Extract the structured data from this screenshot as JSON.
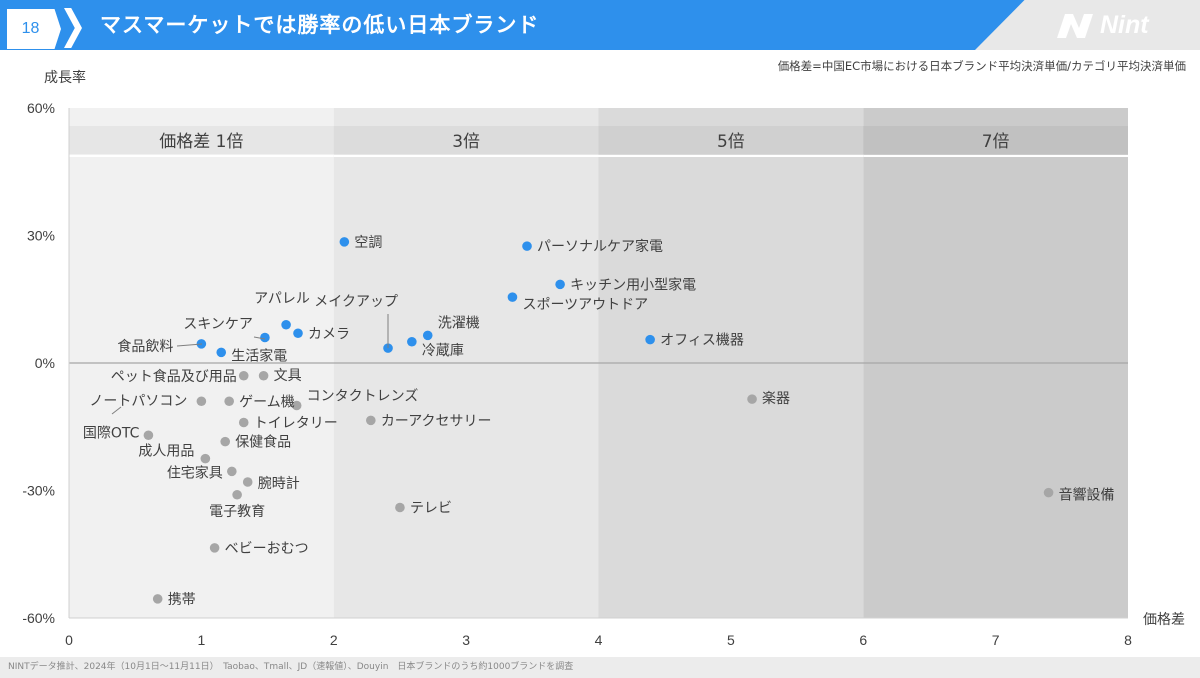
{
  "header": {
    "page_number": "18",
    "title": "マスマーケットでは勝率の低い日本ブランド",
    "logo": "Nint"
  },
  "colors": {
    "header_blue": "#2e90ec",
    "point_blue": "#2e90ec",
    "point_gray": "#a6a6a6"
  },
  "chart_data": {
    "type": "scatter",
    "note": "価格差=中国EC市場における日本ブランド平均決済単価/カテゴリ平均決済単価",
    "xlabel": "価格差",
    "ylabel": "成長率",
    "xlim": [
      0,
      8
    ],
    "ylim": [
      -60,
      60
    ],
    "x_ticks": [
      "0",
      "1",
      "2",
      "3",
      "4",
      "5",
      "6",
      "7",
      "8"
    ],
    "y_ticks": [
      "60%",
      "30%",
      "0%",
      "-30%",
      "-60%"
    ],
    "bands": [
      {
        "label": "価格差 1倍",
        "x_range": [
          0,
          2
        ]
      },
      {
        "label": "3倍",
        "x_range": [
          2,
          4
        ]
      },
      {
        "label": "5倍",
        "x_range": [
          4,
          6
        ]
      },
      {
        "label": "7倍",
        "x_range": [
          6,
          8
        ]
      }
    ],
    "points": [
      {
        "label": "空調",
        "x": 2.08,
        "y": 28.5,
        "group": "blue"
      },
      {
        "label": "パーソナルケア家電",
        "x": 3.46,
        "y": 27.5,
        "group": "blue"
      },
      {
        "label": "キッチン用小型家電",
        "x": 3.71,
        "y": 18.5,
        "group": "blue"
      },
      {
        "label": "スポーツアウトドア",
        "x": 3.35,
        "y": 15.5,
        "group": "blue"
      },
      {
        "label": "アパレル",
        "x": 1.64,
        "y": 9,
        "group": "blue"
      },
      {
        "label": "カメラ",
        "x": 1.73,
        "y": 7,
        "group": "blue"
      },
      {
        "label": "スキンケア",
        "x": 1.48,
        "y": 6,
        "group": "blue"
      },
      {
        "label": "食品飲料",
        "x": 1.0,
        "y": 4.5,
        "group": "blue"
      },
      {
        "label": "生活家電",
        "x": 1.15,
        "y": 2.5,
        "group": "blue"
      },
      {
        "label": "メイクアップ",
        "x": 2.41,
        "y": 3.5,
        "group": "blue"
      },
      {
        "label": "洗濯機",
        "x": 2.71,
        "y": 6.5,
        "group": "blue"
      },
      {
        "label": "冷蔵庫",
        "x": 2.59,
        "y": 5,
        "group": "blue"
      },
      {
        "label": "オフィス機器",
        "x": 4.39,
        "y": 5.5,
        "group": "blue"
      },
      {
        "label": "ペット食品及び用品",
        "x": 1.32,
        "y": -3,
        "group": "gray"
      },
      {
        "label": "文具",
        "x": 1.47,
        "y": -3,
        "group": "gray"
      },
      {
        "label": "ノートパソコン",
        "x": 1.0,
        "y": -9,
        "group": "gray"
      },
      {
        "label": "ゲーム機",
        "x": 1.21,
        "y": -9,
        "group": "gray"
      },
      {
        "label": "コンタクトレンズ",
        "x": 1.72,
        "y": -10,
        "group": "gray"
      },
      {
        "label": "トイレタリー",
        "x": 1.32,
        "y": -14,
        "group": "gray"
      },
      {
        "label": "カーアクセサリー",
        "x": 2.28,
        "y": -13.5,
        "group": "gray"
      },
      {
        "label": "楽器",
        "x": 5.16,
        "y": -8.5,
        "group": "gray"
      },
      {
        "label": "国際OTC",
        "x": 0.6,
        "y": -17,
        "group": "gray"
      },
      {
        "label": "保健食品",
        "x": 1.18,
        "y": -18.5,
        "group": "gray"
      },
      {
        "label": "成人用品",
        "x": 1.03,
        "y": -22.5,
        "group": "gray"
      },
      {
        "label": "住宅家具",
        "x": 1.23,
        "y": -25.5,
        "group": "gray"
      },
      {
        "label": "腕時計",
        "x": 1.35,
        "y": -28,
        "group": "gray"
      },
      {
        "label": "電子教育",
        "x": 1.27,
        "y": -31,
        "group": "gray"
      },
      {
        "label": "テレビ",
        "x": 2.5,
        "y": -34,
        "group": "gray"
      },
      {
        "label": "音響設備",
        "x": 7.4,
        "y": -30.5,
        "group": "gray"
      },
      {
        "label": "ベビーおむつ",
        "x": 1.1,
        "y": -43.5,
        "group": "gray"
      },
      {
        "label": "携帯",
        "x": 0.67,
        "y": -55.5,
        "group": "gray"
      }
    ]
  },
  "footer": {
    "source": "NINTデータ推計、2024年（10月1日～11月11日）　Taobao、Tmall、JD（速報値）、Douyin　日本ブランドのうち約1000ブランドを調査"
  }
}
